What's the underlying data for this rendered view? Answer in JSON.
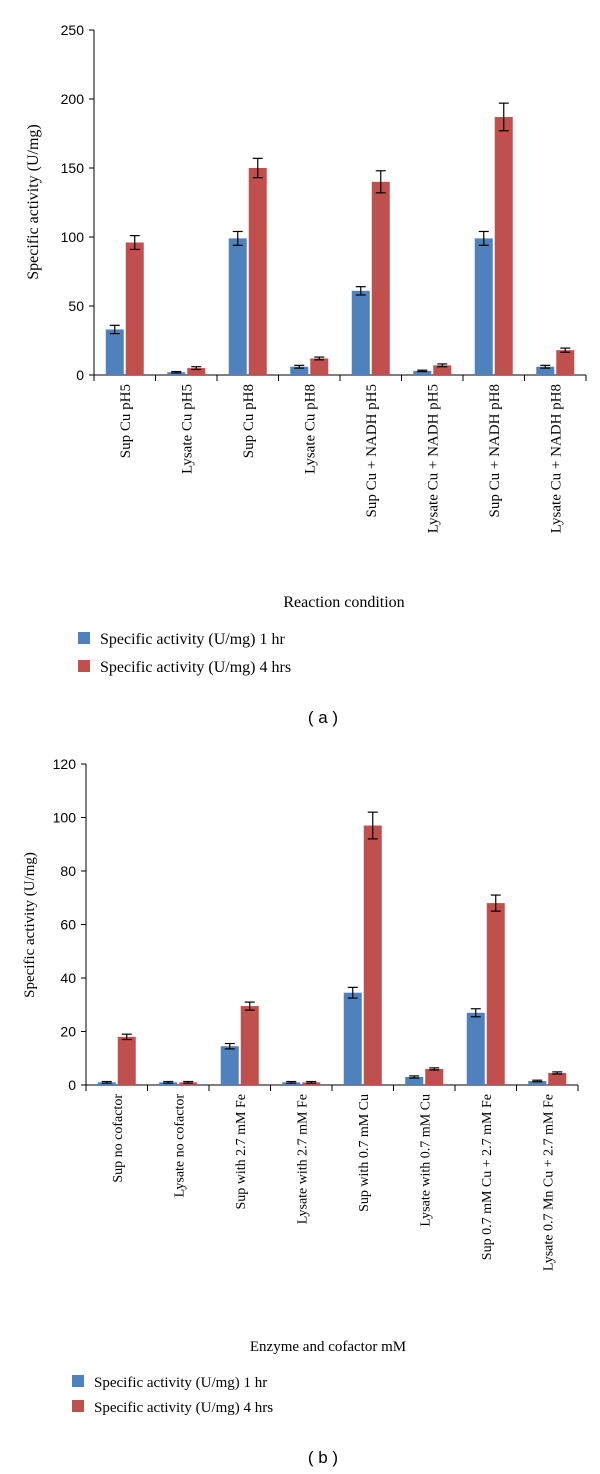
{
  "colors": {
    "series1": "#4f81bd",
    "series2": "#c0504d",
    "axis": "#000000"
  },
  "chart_data": [
    {
      "type": "bar",
      "panel_label": "( a )",
      "xlabel": "Reaction condition",
      "ylabel": "Specific activity  (U/mg)",
      "ylim": [
        0,
        250
      ],
      "yticks": [
        "0",
        "50",
        "100",
        "150",
        "200",
        "250"
      ],
      "categories": [
        "Sup Cu pH5",
        "Lysate Cu pH5",
        "Sup Cu pH8",
        "Lysate Cu pH8",
        "Sup Cu + NADH pH5",
        "Lysate Cu + NADH pH5",
        "Sup Cu + NADH pH8",
        "Lysate Cu + NADH pH8"
      ],
      "series": [
        {
          "name": "Specific activity (U/mg) 1 hr",
          "values": [
            33,
            2,
            99,
            6,
            61,
            3,
            99,
            6
          ],
          "errors": [
            3,
            0.5,
            5,
            1,
            3,
            0.5,
            5,
            1
          ]
        },
        {
          "name": "Specific activity (U/mg) 4 hrs",
          "values": [
            96,
            5,
            150,
            12,
            140,
            7,
            187,
            18
          ],
          "errors": [
            5,
            1,
            7,
            1,
            8,
            1,
            10,
            1.5
          ]
        }
      ]
    },
    {
      "type": "bar",
      "panel_label": "( b )",
      "xlabel": "Enzyme and cofactor mM",
      "ylabel": "Specific activity (U/mg)",
      "ylim": [
        0,
        120
      ],
      "yticks": [
        "0",
        "20",
        "40",
        "60",
        "80",
        "100",
        "120"
      ],
      "categories": [
        "Sup no cofactor",
        "Lysate no cofactor",
        "Sup with 2.7 mM Fe",
        "Lysate with 2.7 mM Fe",
        "Sup with 0.7 mM Cu",
        "Lysate with 0.7 mM Cu",
        "Sup 0.7 mM Cu + 2.7 mM Fe",
        "Lysate 0.7 Mn Cu + 2.7 mM Fe"
      ],
      "series": [
        {
          "name": "Specific activity (U/mg) 1 hr",
          "values": [
            1,
            1,
            14.5,
            1,
            34.5,
            3,
            27,
            1.5
          ],
          "errors": [
            0.3,
            0.3,
            1,
            0.3,
            2,
            0.4,
            1.5,
            0.3
          ]
        },
        {
          "name": "Specific activity (U/mg) 4 hrs",
          "values": [
            18,
            1,
            29.5,
            1,
            97,
            6,
            68,
            4.5
          ],
          "errors": [
            1,
            0.3,
            1.5,
            0.3,
            5,
            0.4,
            3,
            0.4
          ]
        }
      ]
    }
  ]
}
